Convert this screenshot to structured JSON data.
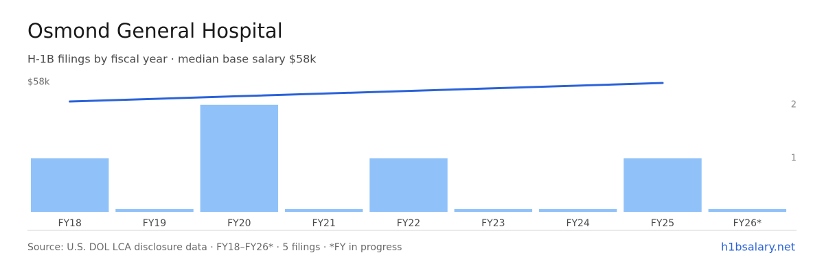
{
  "chart_data": {
    "type": "bar",
    "title": "Osmond General Hospital",
    "subtitle": "H-1B filings by fiscal year · median base salary $58k",
    "categories": [
      "FY18",
      "FY19",
      "FY20",
      "FY21",
      "FY22",
      "FY23",
      "FY24",
      "FY25",
      "FY26*"
    ],
    "series": [
      {
        "name": "H-1B filings",
        "color": "#90c2f9",
        "axis": "y2",
        "values": [
          1,
          0,
          2,
          0,
          1,
          0,
          0,
          1,
          0
        ]
      },
      {
        "name": "Median base salary",
        "type": "line",
        "color": "#2a62d9",
        "x": [
          "FY18",
          "FY20",
          "FY22",
          "FY25"
        ],
        "values": [
          49400,
          51770,
          54130,
          57700
        ]
      }
    ],
    "ylim": [
      0,
      58000
    ],
    "yticks": [
      {
        "value": 58000,
        "label": "$58k"
      }
    ],
    "y2lim": [
      0,
      2.42
    ],
    "y2ticks": [
      1,
      2
    ],
    "source": "Source: U.S. DOL LCA disclosure data · FY18–FY26* · 5 filings · *FY in progress",
    "link": "h1bsalary.net"
  }
}
